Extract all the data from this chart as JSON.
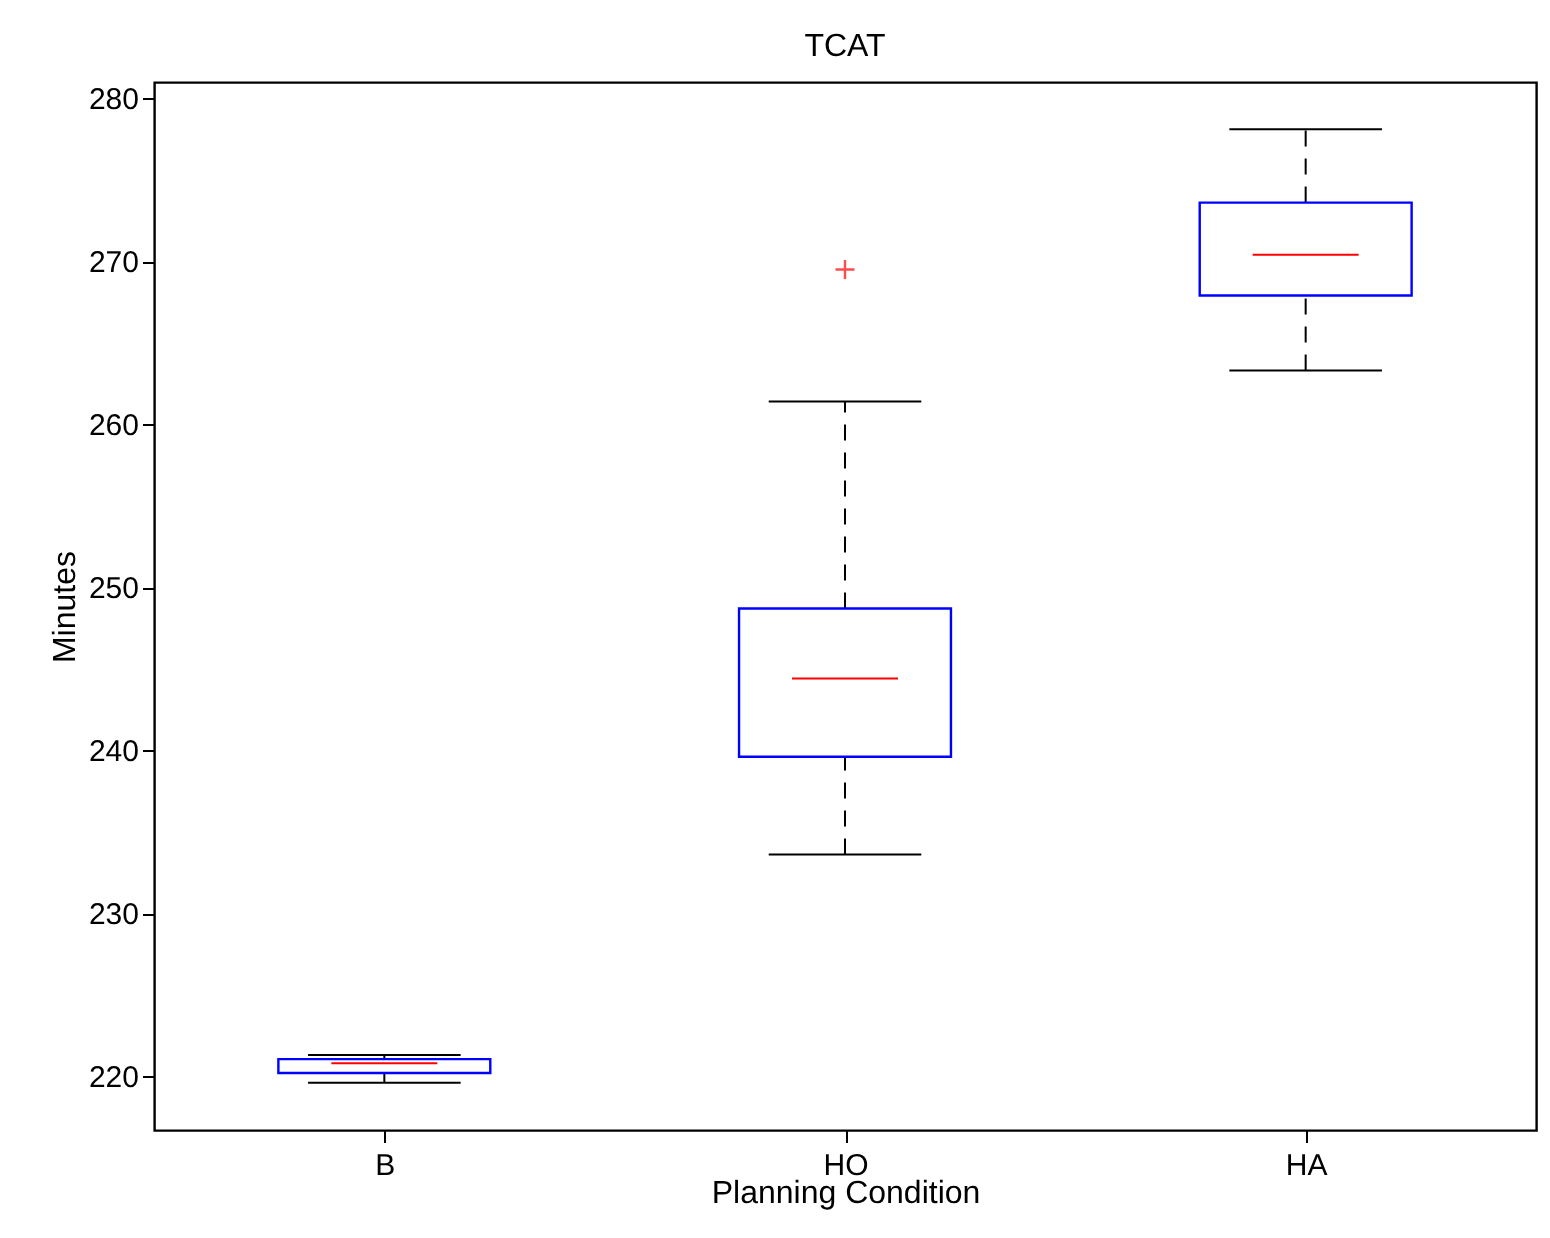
{
  "chart_data": {
    "type": "box",
    "title": "TCAT",
    "xlabel": "Planning Condition",
    "ylabel": "Minutes",
    "categories": [
      "B",
      "HO",
      "HA"
    ],
    "series": [
      {
        "color": "#0000ff",
        "boxes": [
          {
            "low": 219.6,
            "q1": 220.2,
            "median": 220.8,
            "q3": 221.05,
            "high": 221.3
          },
          {
            "low": 233.6,
            "q1": 239.6,
            "median": 244.4,
            "q3": 248.7,
            "high": 261.4,
            "outliers": [
              269.5
            ]
          },
          {
            "low": 263.3,
            "q1": 267.9,
            "median": 270.4,
            "q3": 273.6,
            "high": 278.1
          }
        ]
      }
    ],
    "ylim": [
      216.7,
      281
    ],
    "yticks": [
      220,
      230,
      240,
      250,
      260,
      270,
      280
    ],
    "grid": false
  }
}
